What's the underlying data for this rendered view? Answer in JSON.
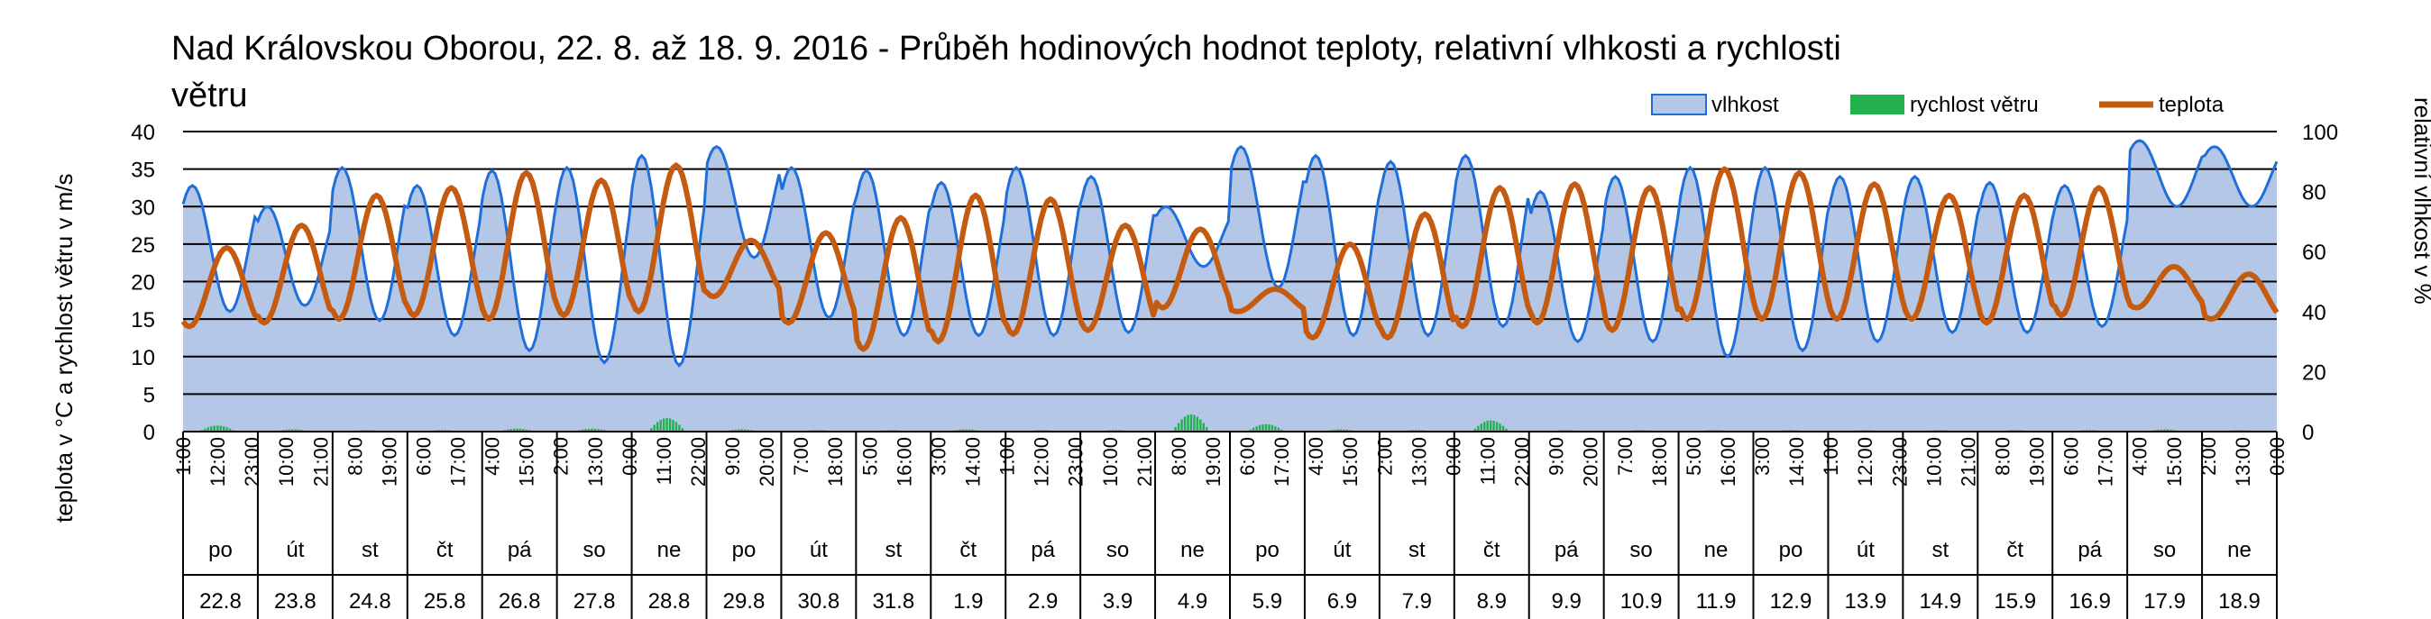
{
  "chart_data": {
    "type": "line",
    "title_line1": "Nad Královskou Oborou, 22. 8. až 18. 9. 2016 - Průběh hodinových hodnot teploty, relativní vlhkosti a rychlosti",
    "title_line2": "větru",
    "ylabel_left": "teplota v °C a rychlost větru v m/s",
    "ylabel_right": "relativní vlhkost v %",
    "ylim_left": [
      0,
      40
    ],
    "yticks_left": [
      0,
      5,
      10,
      15,
      20,
      25,
      30,
      35,
      40
    ],
    "ylim_right": [
      0,
      100
    ],
    "yticks_right": [
      0,
      20,
      40,
      60,
      80,
      100
    ],
    "legend_position": "top-right",
    "legend": [
      "vlhkost",
      "rychlost větru",
      "teplota"
    ],
    "colors": {
      "vlhkost_fill": "#b4c7e7",
      "vlhkost_line": "#1f6fdb",
      "vitr": "#22b14c",
      "teplota": "#c55a11",
      "grid": "#000000"
    },
    "hour_labels": [
      "1:00",
      "12:00",
      "23:00",
      "10:00",
      "21:00",
      "8:00",
      "19:00",
      "6:00",
      "17:00",
      "4:00",
      "15:00",
      "2:00",
      "13:00",
      "0:00",
      "11:00",
      "22:00",
      "9:00",
      "20:00",
      "7:00",
      "18:00",
      "5:00",
      "16:00",
      "3:00",
      "14:00",
      "1:00",
      "12:00",
      "23:00",
      "10:00",
      "21:00",
      "8:00",
      "19:00",
      "6:00",
      "17:00",
      "4:00",
      "15:00",
      "2:00",
      "13:00",
      "0:00",
      "11:00",
      "22:00",
      "9:00",
      "20:00",
      "7:00",
      "18:00",
      "5:00",
      "16:00",
      "3:00",
      "14:00",
      "1:00",
      "12:00",
      "23:00",
      "10:00",
      "21:00",
      "8:00",
      "19:00",
      "6:00",
      "17:00",
      "4:00",
      "15:00",
      "2:00",
      "13:00",
      "0:00"
    ],
    "weekdays": [
      "po",
      "út",
      "st",
      "čt",
      "pá",
      "so",
      "ne",
      "po",
      "út",
      "st",
      "čt",
      "pá",
      "so",
      "ne",
      "po",
      "út",
      "st",
      "čt",
      "pá",
      "so",
      "ne",
      "po",
      "út",
      "st",
      "čt",
      "pá",
      "so",
      "ne"
    ],
    "dates": [
      "22.8",
      "23.8",
      "24.8",
      "25.8",
      "26.8",
      "27.8",
      "28.8",
      "29.8",
      "30.8",
      "31.8",
      "1.9",
      "2.9",
      "3.9",
      "4.9",
      "5.9",
      "6.9",
      "7.9",
      "8.9",
      "9.9",
      "10.9",
      "11.9",
      "12.9",
      "13.9",
      "14.9",
      "15.9",
      "16.9",
      "17.9",
      "18.9"
    ],
    "series": [
      {
        "name": "teplota",
        "unit": "°C",
        "axis": "left",
        "daily_min": [
          14.0,
          14.5,
          15.0,
          15.5,
          15.0,
          15.5,
          16.0,
          18.0,
          14.5,
          11.0,
          12.0,
          13.0,
          13.5,
          16.5,
          16.0,
          12.5,
          12.5,
          14.0,
          14.5,
          13.5,
          15.0,
          15.0,
          15.0,
          15.0,
          14.5,
          15.5,
          16.5,
          15.0
        ],
        "daily_max": [
          24.5,
          27.5,
          31.5,
          32.5,
          34.5,
          33.5,
          35.5,
          25.5,
          26.5,
          28.5,
          31.5,
          31.0,
          27.5,
          27.0,
          19.0,
          25.0,
          29.0,
          32.5,
          33.0,
          32.5,
          35.0,
          34.5,
          33.0,
          31.5,
          31.5,
          32.5,
          22.0,
          21.0
        ]
      },
      {
        "name": "vlhkost",
        "unit": "%",
        "axis": "right",
        "daily_min": [
          40,
          42,
          37,
          32,
          27,
          23,
          22,
          58,
          38,
          32,
          32,
          32,
          33,
          55,
          48,
          32,
          32,
          35,
          30,
          30,
          25,
          27,
          30,
          33,
          33,
          35,
          75,
          75
        ],
        "daily_max": [
          82,
          75,
          88,
          82,
          87,
          88,
          92,
          95,
          88,
          87,
          83,
          88,
          85,
          75,
          95,
          92,
          90,
          92,
          80,
          85,
          88,
          88,
          85,
          85,
          83,
          82,
          97,
          95
        ]
      },
      {
        "name": "rychlost větru",
        "unit": "m/s",
        "axis": "left",
        "daily_max": [
          0.8,
          0.3,
          0.2,
          0.2,
          0.4,
          0.4,
          1.8,
          0.3,
          0.2,
          0.2,
          0.3,
          0.2,
          0.2,
          2.3,
          1.0,
          0.3,
          0.2,
          1.5,
          0.2,
          0.2,
          0.2,
          0.2,
          0.2,
          0.2,
          0.2,
          0.2,
          0.3,
          0.2
        ]
      }
    ]
  }
}
